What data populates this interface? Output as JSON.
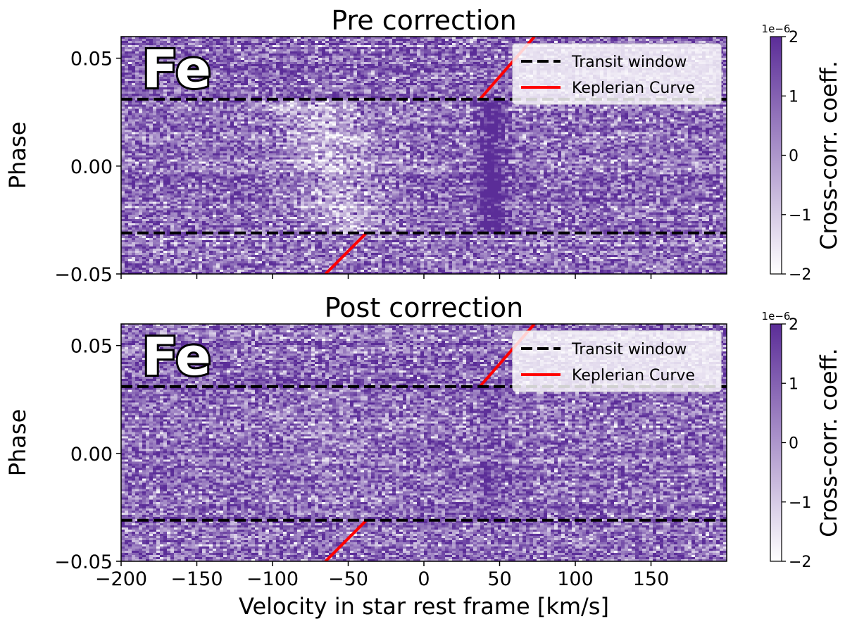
{
  "chart_data": [
    {
      "type": "heatmap",
      "title": "Pre correction",
      "species_label": "Fe",
      "xlabel": "Velocity in star rest frame [km/s]",
      "ylabel": "Phase",
      "xlim": [
        -200,
        200
      ],
      "ylim": [
        -0.05,
        0.06
      ],
      "xticks": [
        -200,
        -150,
        -100,
        -50,
        0,
        50,
        100,
        150
      ],
      "xtick_labels": [
        "",
        "",
        "",
        "",
        "",
        "",
        "",
        ""
      ],
      "yticks": [
        -0.05,
        0.0,
        0.05
      ],
      "ytick_labels": [
        "−0.05",
        "0.00",
        "0.05"
      ],
      "transit_window": [
        -0.031,
        0.031
      ],
      "keplerian_curve": {
        "x": [
          -65,
          -38,
          37,
          73
        ],
        "y": [
          -0.05,
          -0.031,
          0.031,
          0.06
        ]
      },
      "signal_trail": {
        "velocity": 45,
        "phase_range": [
          -0.031,
          0.031
        ],
        "strength": 2.0
      },
      "shadow_trail": {
        "velocity_at_phase_minus": -50,
        "velocity_at_phase_plus": -70,
        "strength": -1.3
      },
      "legend": {
        "placement": "upper right",
        "entries": [
          {
            "label": "Transit window",
            "color": "#000000",
            "style": "dashed"
          },
          {
            "label": "Keplerian Curve",
            "color": "#ff0000",
            "style": "solid"
          }
        ]
      },
      "colorbar": {
        "label": "Cross-corr. coeff.",
        "scale_label": "1e−6",
        "range": [
          -2,
          2
        ],
        "ticks": [
          -2,
          -1,
          0,
          1,
          2
        ],
        "tick_labels": [
          "−2",
          "−1",
          "0",
          "1",
          "2"
        ],
        "colormap": [
          "#ffffff",
          "#5b2d98"
        ]
      }
    },
    {
      "type": "heatmap",
      "title": "Post correction",
      "species_label": "Fe",
      "xlabel": "Velocity in star rest frame [km/s]",
      "ylabel": "Phase",
      "xlim": [
        -200,
        200
      ],
      "ylim": [
        -0.05,
        0.06
      ],
      "xticks": [
        -200,
        -150,
        -100,
        -50,
        0,
        50,
        100,
        150
      ],
      "xtick_labels": [
        "−200",
        "−150",
        "−100",
        "−50",
        "0",
        "50",
        "100",
        "150"
      ],
      "yticks": [
        -0.05,
        0.0,
        0.05
      ],
      "ytick_labels": [
        "−0.05",
        "0.00",
        "0.05"
      ],
      "transit_window": [
        -0.031,
        0.031
      ],
      "keplerian_curve": {
        "x": [
          -65,
          -38,
          37,
          73
        ],
        "y": [
          -0.05,
          -0.031,
          0.031,
          0.06
        ]
      },
      "signal_trail": {
        "velocity": 45,
        "phase_range": [
          -0.031,
          0.031
        ],
        "strength": 0.6
      },
      "shadow_trail": {
        "velocity_at_phase_minus": -50,
        "velocity_at_phase_plus": -70,
        "strength": -0.3
      },
      "legend": {
        "placement": "upper right",
        "entries": [
          {
            "label": "Transit window",
            "color": "#000000",
            "style": "dashed"
          },
          {
            "label": "Keplerian Curve",
            "color": "#ff0000",
            "style": "solid"
          }
        ]
      },
      "colorbar": {
        "label": "Cross-corr. coeff.",
        "scale_label": "1e−6",
        "range": [
          -2,
          2
        ],
        "ticks": [
          -2,
          -1,
          0,
          1,
          2
        ],
        "tick_labels": [
          "−2",
          "−1",
          "0",
          "1",
          "2"
        ],
        "colormap": [
          "#ffffff",
          "#5b2d98"
        ]
      }
    }
  ]
}
